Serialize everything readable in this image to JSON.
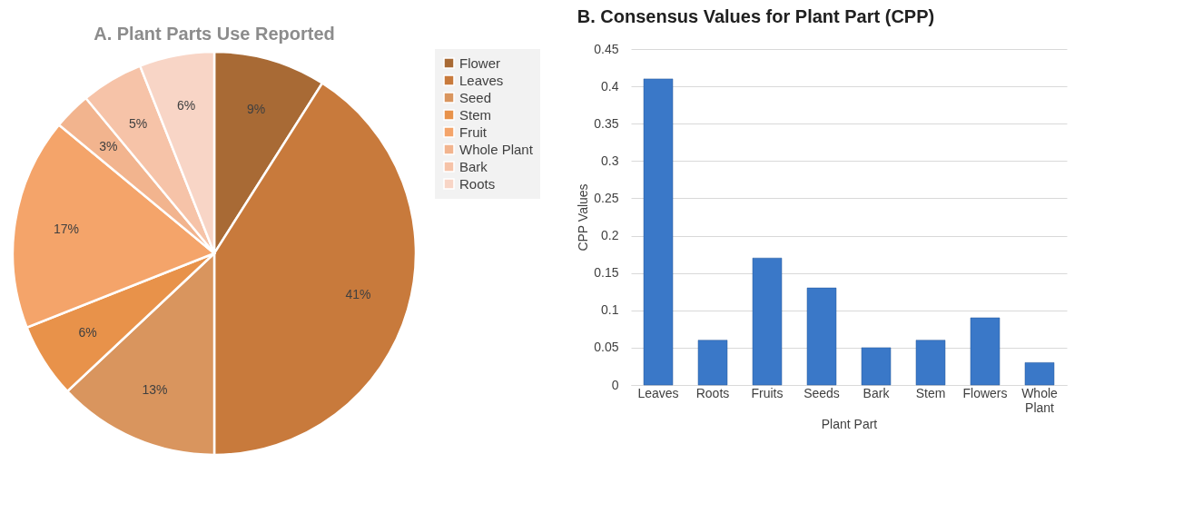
{
  "chart_data": [
    {
      "type": "pie",
      "title": "A. Plant Parts Use Reported",
      "categories": [
        "Flower",
        "Leaves",
        "Seed",
        "Stem",
        "Fruit",
        "Whole Plant",
        "Bark",
        "Roots"
      ],
      "values": [
        9,
        41,
        13,
        6,
        17,
        3,
        5,
        6
      ],
      "value_labels": [
        "9%",
        "41%",
        "13%",
        "6%",
        "17%",
        "3%",
        "5%",
        "6%"
      ],
      "colors": [
        "#a86a35",
        "#c87a3c",
        "#d9955e",
        "#e8924a",
        "#f4a46a",
        "#f2b48e",
        "#f6c3a8",
        "#f8d5c6"
      ],
      "legend": "right"
    },
    {
      "type": "bar",
      "title": "B. Consensus Values for Plant Part (CPP)",
      "xlabel": "Plant Part",
      "ylabel": "CPP Values",
      "categories": [
        "Leaves",
        "Roots",
        "Fruits",
        "Seeds",
        "Bark",
        "Stem",
        "Flowers",
        "Whole Plant"
      ],
      "values": [
        0.41,
        0.06,
        0.17,
        0.13,
        0.05,
        0.06,
        0.09,
        0.03
      ],
      "color": "#3a78c8",
      "ylim": [
        0,
        0.45
      ],
      "yticks": [
        0,
        0.05,
        0.1,
        0.15,
        0.2,
        0.25,
        0.3,
        0.35,
        0.4,
        0.45
      ],
      "grid": "y"
    }
  ]
}
